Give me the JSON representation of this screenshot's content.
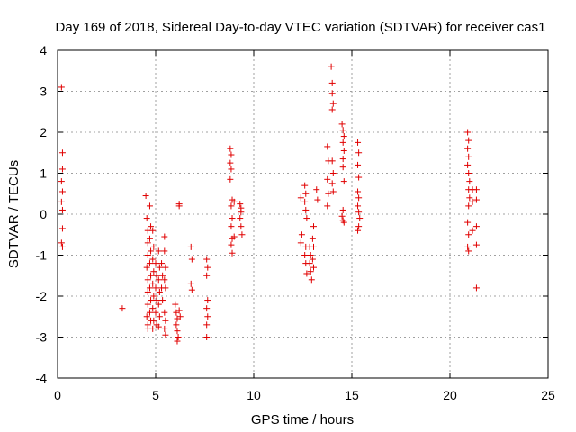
{
  "chart_data": {
    "type": "scatter",
    "title": "Day 169 of 2018, Sidereal Day-to-day VTEC variation (SDTVAR) for receiver cas1",
    "xlabel": "GPS time / hours",
    "ylabel": "SDTVAR / TECUs",
    "xlim": [
      0,
      25
    ],
    "ylim": [
      -4,
      4
    ],
    "xticks": [
      "0",
      "5",
      "10",
      "15",
      "20",
      "25"
    ],
    "yticks": [
      "-4",
      "-3",
      "-2",
      "-1",
      "0",
      "1",
      "2",
      "3",
      "4"
    ],
    "grid": true,
    "marker": "+",
    "marker_color": "#e00000",
    "series": [
      {
        "name": "cas1",
        "points": [
          [
            0.2,
            3.1
          ],
          [
            0.25,
            1.5
          ],
          [
            0.25,
            1.1
          ],
          [
            0.2,
            0.8
          ],
          [
            0.25,
            0.55
          ],
          [
            0.2,
            0.3
          ],
          [
            0.25,
            0.1
          ],
          [
            0.25,
            -0.35
          ],
          [
            0.2,
            -0.7
          ],
          [
            0.25,
            -0.8
          ],
          [
            3.3,
            -2.3
          ],
          [
            4.5,
            0.45
          ],
          [
            4.55,
            -0.1
          ],
          [
            4.6,
            -0.4
          ],
          [
            4.6,
            -0.7
          ],
          [
            4.6,
            -1.0
          ],
          [
            4.55,
            -1.3
          ],
          [
            4.6,
            -1.6
          ],
          [
            4.6,
            -1.9
          ],
          [
            4.6,
            -2.2
          ],
          [
            4.55,
            -2.5
          ],
          [
            4.6,
            -2.7
          ],
          [
            4.6,
            -2.8
          ],
          [
            4.7,
            0.2
          ],
          [
            4.75,
            -0.3
          ],
          [
            4.7,
            -0.6
          ],
          [
            4.75,
            -0.9
          ],
          [
            4.7,
            -1.2
          ],
          [
            4.75,
            -1.5
          ],
          [
            4.7,
            -1.8
          ],
          [
            4.75,
            -2.1
          ],
          [
            4.7,
            -2.4
          ],
          [
            4.75,
            -2.6
          ],
          [
            4.85,
            -0.4
          ],
          [
            4.9,
            -0.8
          ],
          [
            4.85,
            -1.1
          ],
          [
            4.9,
            -1.4
          ],
          [
            4.85,
            -1.7
          ],
          [
            4.9,
            -2.0
          ],
          [
            4.85,
            -2.3
          ],
          [
            4.9,
            -2.6
          ],
          [
            4.85,
            -2.8
          ],
          [
            5.0,
            -1.2
          ],
          [
            5.05,
            -1.5
          ],
          [
            5.0,
            -1.8
          ],
          [
            5.05,
            -2.1
          ],
          [
            5.0,
            -2.4
          ],
          [
            5.05,
            -2.7
          ],
          [
            5.15,
            -0.9
          ],
          [
            5.2,
            -1.3
          ],
          [
            5.15,
            -1.6
          ],
          [
            5.2,
            -1.9
          ],
          [
            5.15,
            -2.2
          ],
          [
            5.2,
            -2.5
          ],
          [
            5.15,
            -2.75
          ],
          [
            5.3,
            -1.2
          ],
          [
            5.35,
            -1.5
          ],
          [
            5.3,
            -1.8
          ],
          [
            5.35,
            -2.1
          ],
          [
            5.45,
            -0.55
          ],
          [
            5.45,
            -0.9
          ],
          [
            5.5,
            -1.3
          ],
          [
            5.45,
            -1.6
          ],
          [
            5.5,
            -1.8
          ],
          [
            5.45,
            -2.4
          ],
          [
            5.5,
            -2.6
          ],
          [
            5.45,
            -2.8
          ],
          [
            5.5,
            -2.95
          ],
          [
            6.0,
            -2.2
          ],
          [
            6.05,
            -2.4
          ],
          [
            6.1,
            -2.55
          ],
          [
            6.05,
            -2.7
          ],
          [
            6.1,
            -2.85
          ],
          [
            6.15,
            -3.0
          ],
          [
            6.1,
            -3.1
          ],
          [
            6.2,
            0.25
          ],
          [
            6.2,
            0.2
          ],
          [
            6.2,
            -2.35
          ],
          [
            6.25,
            -2.5
          ],
          [
            6.8,
            -0.8
          ],
          [
            6.85,
            -1.1
          ],
          [
            6.8,
            -1.7
          ],
          [
            6.85,
            -1.85
          ],
          [
            7.6,
            -1.1
          ],
          [
            7.65,
            -1.3
          ],
          [
            7.6,
            -1.5
          ],
          [
            7.65,
            -2.1
          ],
          [
            7.6,
            -2.3
          ],
          [
            7.65,
            -2.5
          ],
          [
            7.6,
            -2.7
          ],
          [
            7.6,
            -3.0
          ],
          [
            8.8,
            1.6
          ],
          [
            8.85,
            1.45
          ],
          [
            8.8,
            1.25
          ],
          [
            8.85,
            1.1
          ],
          [
            8.8,
            0.85
          ],
          [
            8.9,
            0.35
          ],
          [
            8.85,
            0.2
          ],
          [
            8.9,
            -0.1
          ],
          [
            8.85,
            -0.3
          ],
          [
            8.9,
            -0.6
          ],
          [
            8.85,
            -0.75
          ],
          [
            8.9,
            -0.95
          ],
          [
            9.0,
            0.3
          ],
          [
            9.0,
            -0.55
          ],
          [
            9.3,
            0.25
          ],
          [
            9.35,
            0.05
          ],
          [
            9.3,
            -0.1
          ],
          [
            9.35,
            -0.3
          ],
          [
            9.4,
            -0.5
          ],
          [
            9.35,
            0.15
          ],
          [
            12.4,
            0.4
          ],
          [
            12.45,
            -0.5
          ],
          [
            12.4,
            -0.7
          ],
          [
            12.6,
            0.7
          ],
          [
            12.65,
            0.5
          ],
          [
            12.6,
            0.3
          ],
          [
            12.65,
            0.1
          ],
          [
            12.7,
            -0.1
          ],
          [
            12.65,
            -0.8
          ],
          [
            12.6,
            -1.0
          ],
          [
            12.65,
            -1.2
          ],
          [
            12.7,
            -1.45
          ],
          [
            12.85,
            -0.8
          ],
          [
            12.9,
            -1.0
          ],
          [
            12.85,
            -1.2
          ],
          [
            12.9,
            -1.4
          ],
          [
            12.95,
            -1.6
          ],
          [
            13.05,
            -0.3
          ],
          [
            13.0,
            -0.6
          ],
          [
            13.05,
            -0.8
          ],
          [
            13.0,
            -1.1
          ],
          [
            13.05,
            -1.3
          ],
          [
            13.2,
            0.6
          ],
          [
            13.25,
            0.35
          ],
          [
            13.75,
            1.65
          ],
          [
            13.8,
            1.3
          ],
          [
            13.75,
            0.85
          ],
          [
            13.8,
            0.5
          ],
          [
            13.75,
            0.2
          ],
          [
            13.95,
            3.6
          ],
          [
            14.0,
            3.2
          ],
          [
            14.0,
            2.95
          ],
          [
            14.05,
            2.7
          ],
          [
            14.0,
            2.55
          ],
          [
            14.0,
            1.3
          ],
          [
            14.05,
            1.0
          ],
          [
            14.0,
            0.75
          ],
          [
            14.05,
            0.55
          ],
          [
            14.5,
            2.2
          ],
          [
            14.55,
            2.05
          ],
          [
            14.6,
            1.9
          ],
          [
            14.55,
            1.75
          ],
          [
            14.6,
            1.55
          ],
          [
            14.55,
            1.35
          ],
          [
            14.55,
            1.15
          ],
          [
            14.6,
            0.8
          ],
          [
            14.55,
            0.1
          ],
          [
            14.5,
            -0.05
          ],
          [
            14.55,
            -0.15
          ],
          [
            14.6,
            -0.2
          ],
          [
            15.3,
            1.75
          ],
          [
            15.35,
            1.5
          ],
          [
            15.3,
            1.2
          ],
          [
            15.35,
            0.9
          ],
          [
            15.3,
            0.55
          ],
          [
            15.35,
            0.4
          ],
          [
            15.3,
            0.2
          ],
          [
            15.35,
            0.05
          ],
          [
            15.4,
            -0.1
          ],
          [
            15.35,
            -0.3
          ],
          [
            15.3,
            -0.4
          ],
          [
            20.9,
            2.0
          ],
          [
            20.95,
            1.8
          ],
          [
            20.9,
            1.6
          ],
          [
            20.95,
            1.4
          ],
          [
            20.9,
            1.2
          ],
          [
            20.95,
            1.0
          ],
          [
            21.0,
            0.8
          ],
          [
            20.95,
            0.6
          ],
          [
            21.0,
            0.4
          ],
          [
            20.95,
            0.2
          ],
          [
            20.9,
            -0.2
          ],
          [
            20.95,
            -0.5
          ],
          [
            20.9,
            -0.8
          ],
          [
            20.95,
            -0.9
          ],
          [
            21.15,
            0.6
          ],
          [
            21.15,
            0.3
          ],
          [
            21.15,
            -0.4
          ],
          [
            21.35,
            0.6
          ],
          [
            21.35,
            0.35
          ],
          [
            21.35,
            -0.3
          ],
          [
            21.35,
            -0.75
          ],
          [
            21.35,
            -1.8
          ]
        ]
      }
    ]
  }
}
